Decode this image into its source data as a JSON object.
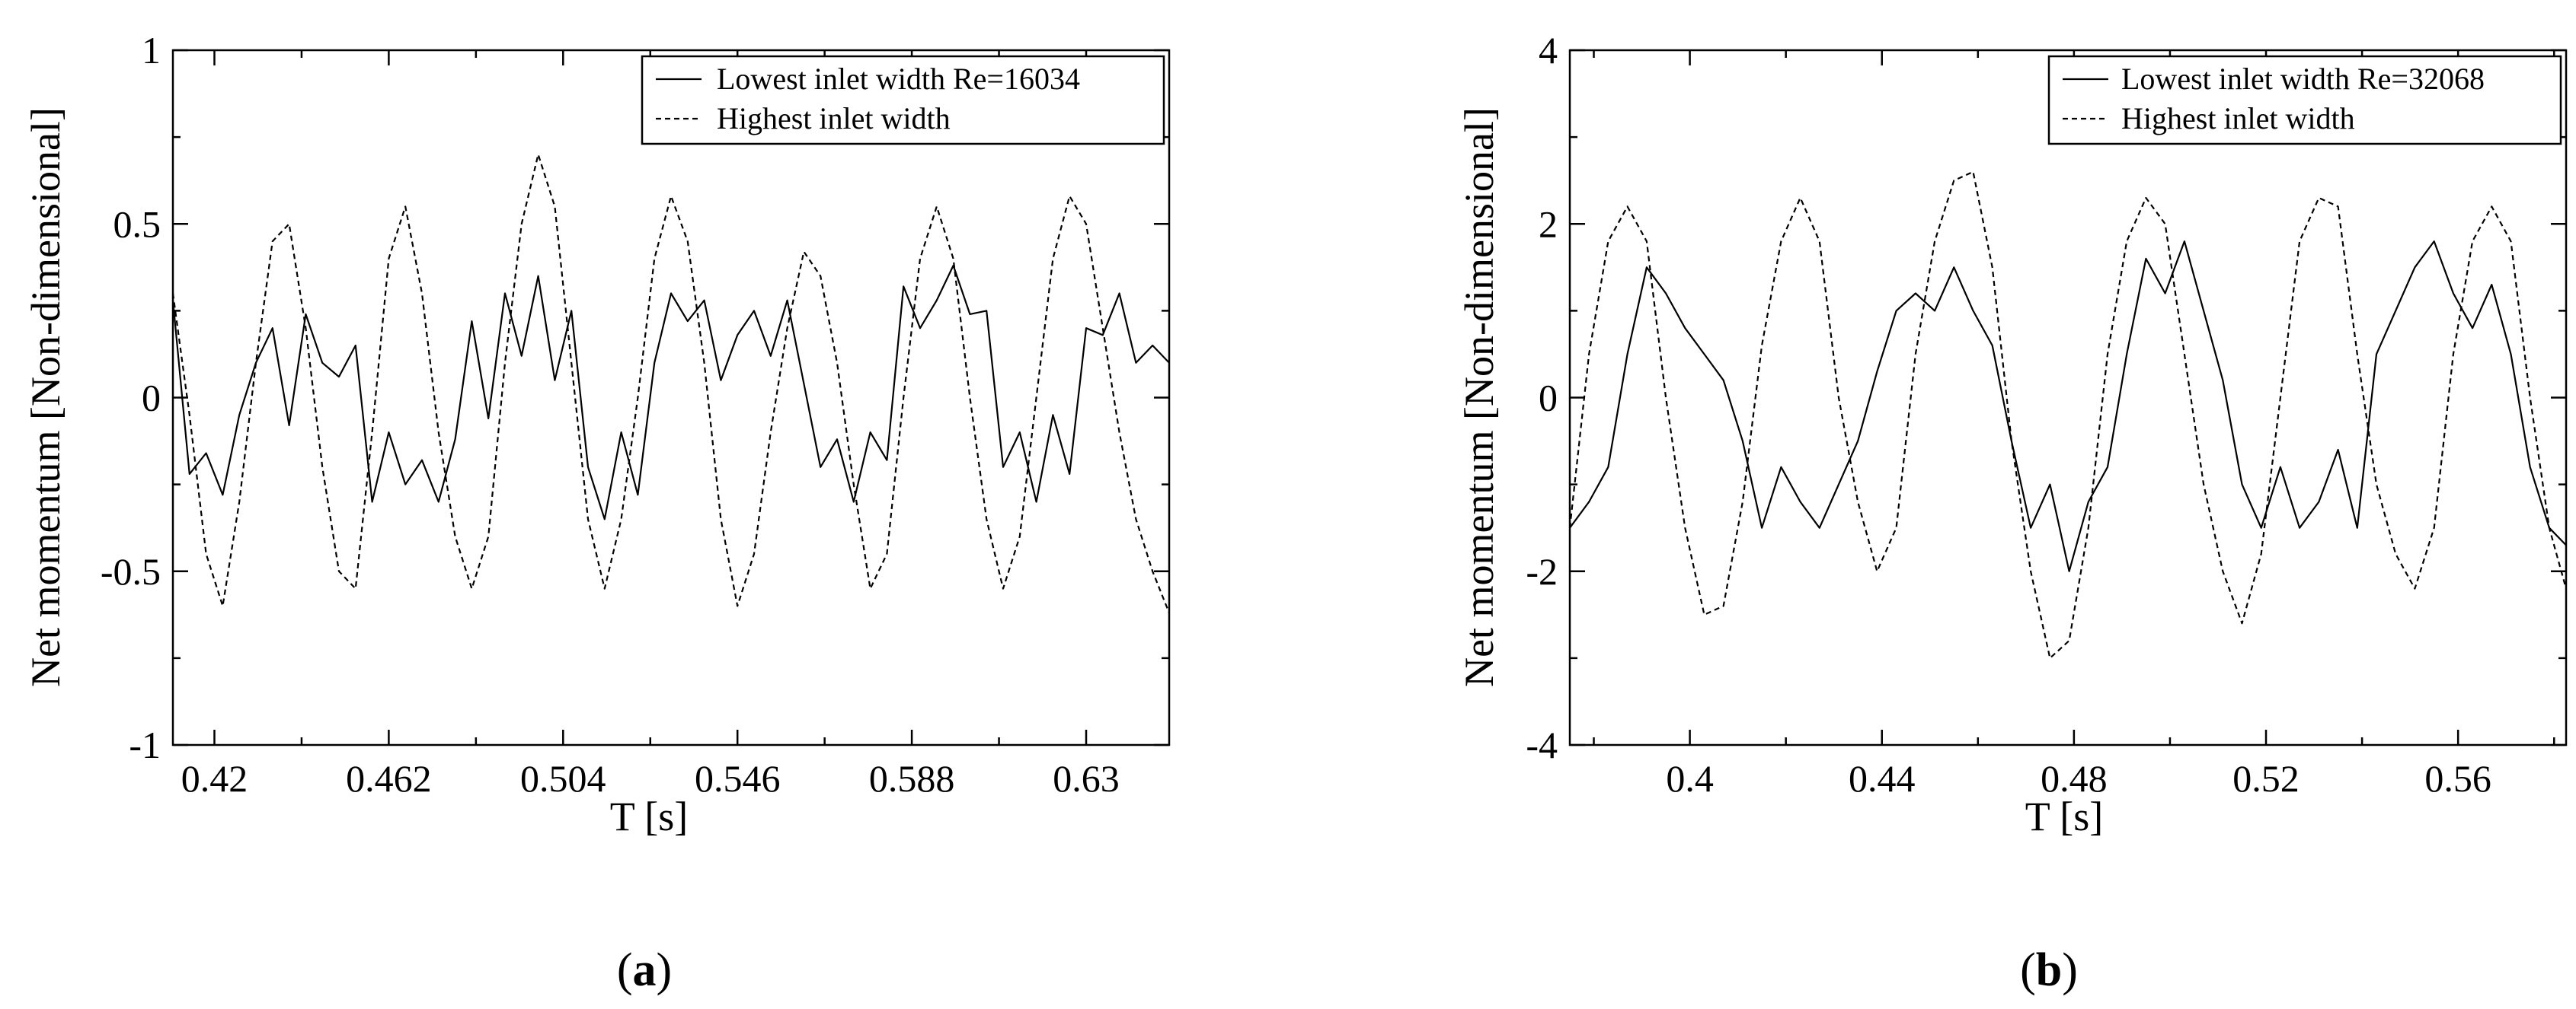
{
  "chart_data": [
    {
      "type": "line",
      "panel_label": "a",
      "xlabel": "T [s]",
      "ylabel": "Net momentum [Non-dimensional]",
      "xlim": [
        0.41,
        0.65
      ],
      "ylim": [
        -1,
        1
      ],
      "xticks": [
        0.42,
        0.462,
        0.504,
        0.546,
        0.588,
        0.63
      ],
      "xtick_labels": [
        "0.42",
        "0.462",
        "0.504",
        "0.546",
        "0.588",
        "0.63"
      ],
      "yticks": [
        -1,
        -0.5,
        0,
        0.5,
        1
      ],
      "ytick_labels": [
        "-1",
        "-0.5",
        "0",
        "0.5",
        "1"
      ],
      "legend_position": "top-right",
      "series": [
        {
          "name": "Lowest inlet width Re=16034",
          "style": "solid",
          "x": [
            0.41,
            0.414,
            0.418,
            0.422,
            0.426,
            0.43,
            0.434,
            0.438,
            0.442,
            0.446,
            0.45,
            0.454,
            0.458,
            0.462,
            0.466,
            0.47,
            0.474,
            0.478,
            0.482,
            0.486,
            0.49,
            0.494,
            0.498,
            0.502,
            0.506,
            0.51,
            0.514,
            0.518,
            0.522,
            0.526,
            0.53,
            0.534,
            0.538,
            0.542,
            0.546,
            0.55,
            0.554,
            0.558,
            0.562,
            0.566,
            0.57,
            0.574,
            0.578,
            0.582,
            0.586,
            0.59,
            0.594,
            0.598,
            0.602,
            0.606,
            0.61,
            0.614,
            0.618,
            0.622,
            0.626,
            0.63,
            0.634,
            0.638,
            0.642,
            0.646,
            0.65
          ],
          "y": [
            0.28,
            -0.22,
            -0.16,
            -0.28,
            -0.05,
            0.1,
            0.2,
            -0.08,
            0.24,
            0.1,
            0.06,
            0.15,
            -0.3,
            -0.1,
            -0.25,
            -0.18,
            -0.3,
            -0.12,
            0.22,
            -0.06,
            0.3,
            0.12,
            0.35,
            0.05,
            0.25,
            -0.2,
            -0.35,
            -0.1,
            -0.28,
            0.1,
            0.3,
            0.22,
            0.28,
            0.05,
            0.18,
            0.25,
            0.12,
            0.28,
            0.04,
            -0.2,
            -0.12,
            -0.3,
            -0.1,
            -0.18,
            0.32,
            0.2,
            0.28,
            0.38,
            0.24,
            0.25,
            -0.2,
            -0.1,
            -0.3,
            -0.05,
            -0.22,
            0.2,
            0.18,
            0.3,
            0.1,
            0.15,
            0.1
          ]
        },
        {
          "name": "Highest inlet width",
          "style": "dashed",
          "x": [
            0.41,
            0.414,
            0.418,
            0.422,
            0.426,
            0.43,
            0.434,
            0.438,
            0.442,
            0.446,
            0.45,
            0.454,
            0.458,
            0.462,
            0.466,
            0.47,
            0.474,
            0.478,
            0.482,
            0.486,
            0.49,
            0.494,
            0.498,
            0.502,
            0.506,
            0.51,
            0.514,
            0.518,
            0.522,
            0.526,
            0.53,
            0.534,
            0.538,
            0.542,
            0.546,
            0.55,
            0.554,
            0.558,
            0.562,
            0.566,
            0.57,
            0.574,
            0.578,
            0.582,
            0.586,
            0.59,
            0.594,
            0.598,
            0.602,
            0.606,
            0.61,
            0.614,
            0.618,
            0.622,
            0.626,
            0.63,
            0.634,
            0.638,
            0.642,
            0.646,
            0.65
          ],
          "y": [
            0.3,
            -0.05,
            -0.45,
            -0.6,
            -0.3,
            0.1,
            0.45,
            0.5,
            0.2,
            -0.2,
            -0.5,
            -0.55,
            -0.1,
            0.4,
            0.55,
            0.3,
            -0.1,
            -0.4,
            -0.55,
            -0.4,
            0.1,
            0.5,
            0.7,
            0.55,
            0.1,
            -0.35,
            -0.55,
            -0.35,
            0.0,
            0.4,
            0.58,
            0.45,
            0.1,
            -0.35,
            -0.6,
            -0.45,
            -0.1,
            0.2,
            0.42,
            0.35,
            0.1,
            -0.25,
            -0.55,
            -0.45,
            0.0,
            0.4,
            0.55,
            0.4,
            0.0,
            -0.35,
            -0.55,
            -0.4,
            0.0,
            0.4,
            0.58,
            0.5,
            0.2,
            -0.1,
            -0.35,
            -0.5,
            -0.62
          ]
        }
      ]
    },
    {
      "type": "line",
      "panel_label": "b",
      "xlabel": "T [s]",
      "ylabel": "Net momentum [Non-dimensional]",
      "xlim": [
        0.375,
        0.5825
      ],
      "ylim": [
        -4,
        4
      ],
      "xticks": [
        0.4,
        0.44,
        0.48,
        0.52,
        0.56
      ],
      "xtick_labels": [
        "0.4",
        "0.44",
        "0.48",
        "0.52",
        "0.56"
      ],
      "yticks": [
        -4,
        -2,
        0,
        2,
        4
      ],
      "ytick_labels": [
        "-4",
        "-2",
        "0",
        "2",
        "4"
      ],
      "legend_position": "top-right",
      "series": [
        {
          "name": "Lowest inlet width Re=32068",
          "style": "solid",
          "x": [
            0.375,
            0.379,
            0.383,
            0.387,
            0.391,
            0.395,
            0.399,
            0.403,
            0.407,
            0.411,
            0.415,
            0.419,
            0.423,
            0.427,
            0.431,
            0.435,
            0.439,
            0.443,
            0.447,
            0.451,
            0.455,
            0.459,
            0.463,
            0.467,
            0.471,
            0.475,
            0.479,
            0.483,
            0.487,
            0.491,
            0.495,
            0.499,
            0.503,
            0.507,
            0.511,
            0.515,
            0.519,
            0.523,
            0.527,
            0.531,
            0.535,
            0.539,
            0.543,
            0.547,
            0.551,
            0.555,
            0.559,
            0.563,
            0.567,
            0.571,
            0.575,
            0.579,
            0.5825
          ],
          "y": [
            -1.5,
            -1.2,
            -0.8,
            0.5,
            1.5,
            1.2,
            0.8,
            0.5,
            0.2,
            -0.5,
            -1.5,
            -0.8,
            -1.2,
            -1.5,
            -1.0,
            -0.5,
            0.3,
            1.0,
            1.2,
            1.0,
            1.5,
            1.0,
            0.6,
            -0.5,
            -1.5,
            -1.0,
            -2.0,
            -1.2,
            -0.8,
            0.5,
            1.6,
            1.2,
            1.8,
            1.0,
            0.2,
            -1.0,
            -1.5,
            -0.8,
            -1.5,
            -1.2,
            -0.6,
            -1.5,
            0.5,
            1.0,
            1.5,
            1.8,
            1.2,
            0.8,
            1.3,
            0.5,
            -0.8,
            -1.5,
            -1.7
          ]
        },
        {
          "name": "Highest inlet width",
          "style": "dashed",
          "x": [
            0.375,
            0.379,
            0.383,
            0.387,
            0.391,
            0.395,
            0.399,
            0.403,
            0.407,
            0.411,
            0.415,
            0.419,
            0.423,
            0.427,
            0.431,
            0.435,
            0.439,
            0.443,
            0.447,
            0.451,
            0.455,
            0.459,
            0.463,
            0.467,
            0.471,
            0.475,
            0.479,
            0.483,
            0.487,
            0.491,
            0.495,
            0.499,
            0.503,
            0.507,
            0.511,
            0.515,
            0.519,
            0.523,
            0.527,
            0.531,
            0.535,
            0.539,
            0.543,
            0.547,
            0.551,
            0.555,
            0.559,
            0.563,
            0.567,
            0.571,
            0.575,
            0.579,
            0.5825
          ],
          "y": [
            -1.5,
            0.5,
            1.8,
            2.2,
            1.8,
            0.0,
            -1.5,
            -2.5,
            -2.4,
            -1.2,
            0.6,
            1.8,
            2.3,
            1.8,
            0.0,
            -1.2,
            -2.0,
            -1.5,
            0.5,
            1.8,
            2.5,
            2.6,
            1.5,
            -0.5,
            -2.0,
            -3.0,
            -2.8,
            -1.5,
            0.5,
            1.8,
            2.3,
            2.0,
            0.5,
            -1.0,
            -2.0,
            -2.6,
            -1.8,
            0.0,
            1.8,
            2.3,
            2.2,
            0.5,
            -1.0,
            -1.8,
            -2.2,
            -1.5,
            0.5,
            1.8,
            2.2,
            1.8,
            0.0,
            -1.5,
            -2.2
          ]
        }
      ]
    }
  ]
}
